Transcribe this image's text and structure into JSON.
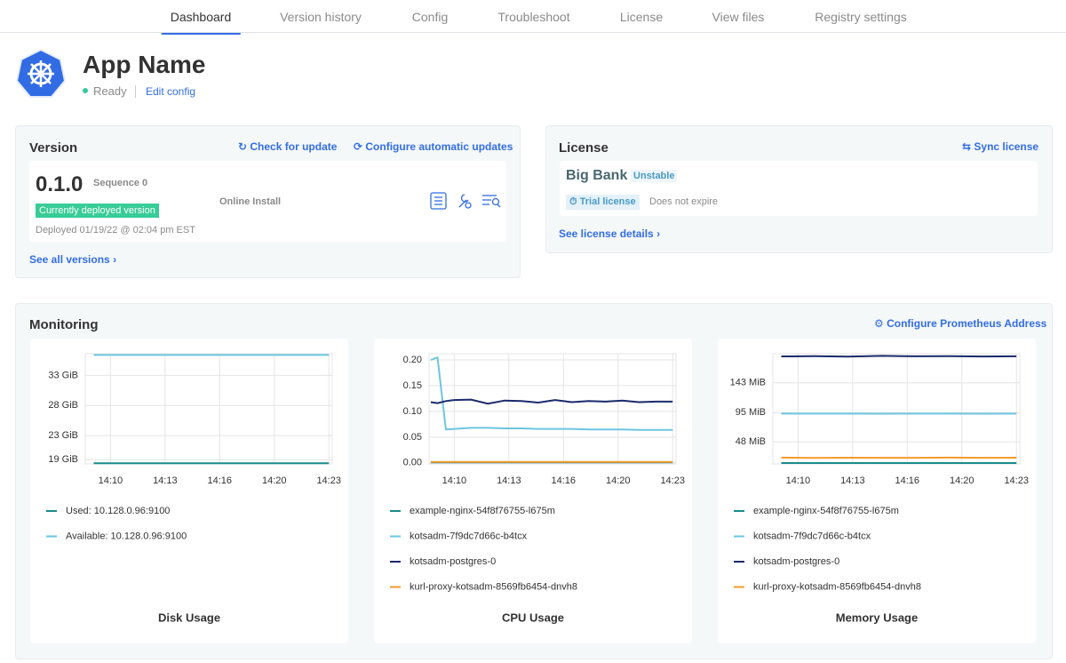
{
  "nav": {
    "tabs": [
      "Dashboard",
      "Version history",
      "Config",
      "Troubleshoot",
      "License",
      "View files",
      "Registry settings"
    ],
    "active": 0
  },
  "app": {
    "name": "App Name",
    "status": "Ready",
    "edit": "Edit config"
  },
  "version": {
    "title": "Version",
    "check": "Check for update",
    "auto": "Configure automatic updates",
    "number": "0.1.0",
    "sequence": "Sequence 0",
    "badge": "Currently deployed version",
    "deployed": "Deployed 01/19/22 @ 02:04 pm EST",
    "install": "Online Install",
    "link": "See all versions"
  },
  "license": {
    "title": "License",
    "sync": "Sync license",
    "name": "Big Bank",
    "channel": "Unstable",
    "type": "Trial license",
    "expiry": "Does not expire",
    "link": "See license details"
  },
  "monitoring": {
    "title": "Monitoring",
    "action": "Configure Prometheus Address"
  },
  "chart_data": [
    {
      "type": "line",
      "title": "Disk Usage",
      "grid": true,
      "x": [
        849,
        851,
        853,
        855,
        857,
        859,
        861,
        863
      ],
      "xlim": [
        848.5,
        863.2
      ],
      "xticks": [
        {
          "value": 850,
          "label": "14:10"
        },
        {
          "value": 853.25,
          "label": "14:13"
        },
        {
          "value": 856.5,
          "label": "14:16"
        },
        {
          "value": 859.75,
          "label": "14:20"
        },
        {
          "value": 863,
          "label": "14:23"
        }
      ],
      "ylim": [
        18.3,
        36.6
      ],
      "yticks": [
        {
          "value": 19,
          "label": "19 GiB"
        },
        {
          "value": 23,
          "label": "23 GiB"
        },
        {
          "value": 28,
          "label": "28 GiB"
        },
        {
          "value": 33,
          "label": "33 GiB"
        }
      ],
      "series": [
        {
          "name": "Used: 10.128.0.96:9100",
          "color": "#1a8c8c",
          "values": [
            18.4,
            18.4,
            18.4,
            18.4,
            18.4,
            18.4,
            18.4,
            18.4
          ]
        },
        {
          "name": "Available: 10.128.0.96:9100",
          "color": "#6cc6e0",
          "values": [
            36.4,
            36.4,
            36.4,
            36.4,
            36.4,
            36.4,
            36.4,
            36.4
          ]
        }
      ]
    },
    {
      "type": "line",
      "title": "CPU Usage",
      "grid": true,
      "x": [
        848.6,
        849.0,
        849.5,
        850,
        851,
        852,
        853,
        854,
        855,
        856,
        857,
        858,
        859,
        860,
        861,
        862,
        863
      ],
      "xlim": [
        848.5,
        863.2
      ],
      "xticks": [
        {
          "value": 850,
          "label": "14:10"
        },
        {
          "value": 853.25,
          "label": "14:13"
        },
        {
          "value": 856.5,
          "label": "14:16"
        },
        {
          "value": 859.75,
          "label": "14:20"
        },
        {
          "value": 863,
          "label": "14:23"
        }
      ],
      "ylim": [
        -0.002,
        0.212
      ],
      "yticks": [
        {
          "value": 0,
          "label": "0.00"
        },
        {
          "value": 0.05,
          "label": "0.05"
        },
        {
          "value": 0.1,
          "label": "0.10"
        },
        {
          "value": 0.15,
          "label": "0.15"
        },
        {
          "value": 0.2,
          "label": "0.20"
        }
      ],
      "series": [
        {
          "name": "example-nginx-54f8f76755-l675m",
          "color": "#1a8c8c",
          "values": [
            0.001,
            0.001,
            0.001,
            0.001,
            0.001,
            0.001,
            0.001,
            0.001,
            0.001,
            0.001,
            0.001,
            0.001,
            0.001,
            0.001,
            0.001,
            0.001,
            0.001
          ]
        },
        {
          "name": "kotsadm-7f9dc7d66c-b4tcx",
          "color": "#6cc6e0",
          "values": [
            0.2,
            0.205,
            0.065,
            0.066,
            0.068,
            0.068,
            0.067,
            0.067,
            0.066,
            0.066,
            0.066,
            0.065,
            0.065,
            0.065,
            0.064,
            0.064,
            0.064
          ]
        },
        {
          "name": "kotsadm-postgres-0",
          "color": "#1b2a6b",
          "values": [
            0.118,
            0.116,
            0.12,
            0.122,
            0.123,
            0.115,
            0.121,
            0.12,
            0.117,
            0.122,
            0.118,
            0.12,
            0.119,
            0.121,
            0.118,
            0.119,
            0.119
          ]
        },
        {
          "name": "kurl-proxy-kotsadm-8569fb6454-dnvh8",
          "color": "#f59a2d",
          "values": [
            0.002,
            0.002,
            0.002,
            0.002,
            0.002,
            0.002,
            0.002,
            0.002,
            0.002,
            0.002,
            0.002,
            0.002,
            0.002,
            0.002,
            0.002,
            0.002,
            0.002
          ]
        }
      ]
    },
    {
      "type": "line",
      "title": "Memory Usage",
      "grid": true,
      "x": [
        849,
        851,
        853,
        855,
        857,
        859,
        861,
        863
      ],
      "xlim": [
        848.5,
        863.2
      ],
      "xticks": [
        {
          "value": 850,
          "label": "14:10"
        },
        {
          "value": 853.25,
          "label": "14:13"
        },
        {
          "value": 856.5,
          "label": "14:16"
        },
        {
          "value": 859.75,
          "label": "14:20"
        },
        {
          "value": 863,
          "label": "14:23"
        }
      ],
      "ylim": [
        12.5,
        189.8
      ],
      "yticks": [
        {
          "value": 48,
          "label": "48 MiB"
        },
        {
          "value": 95,
          "label": "95 MiB"
        },
        {
          "value": 143,
          "label": "143 MiB"
        }
      ],
      "series": [
        {
          "name": "example-nginx-54f8f76755-l675m",
          "color": "#1a8c8c",
          "values": [
            13.9,
            13.9,
            13.9,
            13.9,
            13.9,
            13.9,
            13.9,
            13.9
          ]
        },
        {
          "name": "kotsadm-7f9dc7d66c-b4tcx",
          "color": "#6cc6e0",
          "values": [
            93.6,
            93.4,
            93.5,
            93.3,
            93.4,
            93.5,
            93.3,
            93.4
          ]
        },
        {
          "name": "kotsadm-postgres-0",
          "color": "#1b2a6b",
          "values": [
            185.5,
            185.8,
            185.2,
            186.4,
            185.6,
            185.9,
            185.4,
            185.7
          ]
        },
        {
          "name": "kurl-proxy-kotsadm-8569fb6454-dnvh8",
          "color": "#f59a2d",
          "values": [
            22.6,
            22.2,
            22.5,
            22.3,
            22.4,
            22.6,
            22.3,
            22.5
          ]
        }
      ]
    }
  ]
}
